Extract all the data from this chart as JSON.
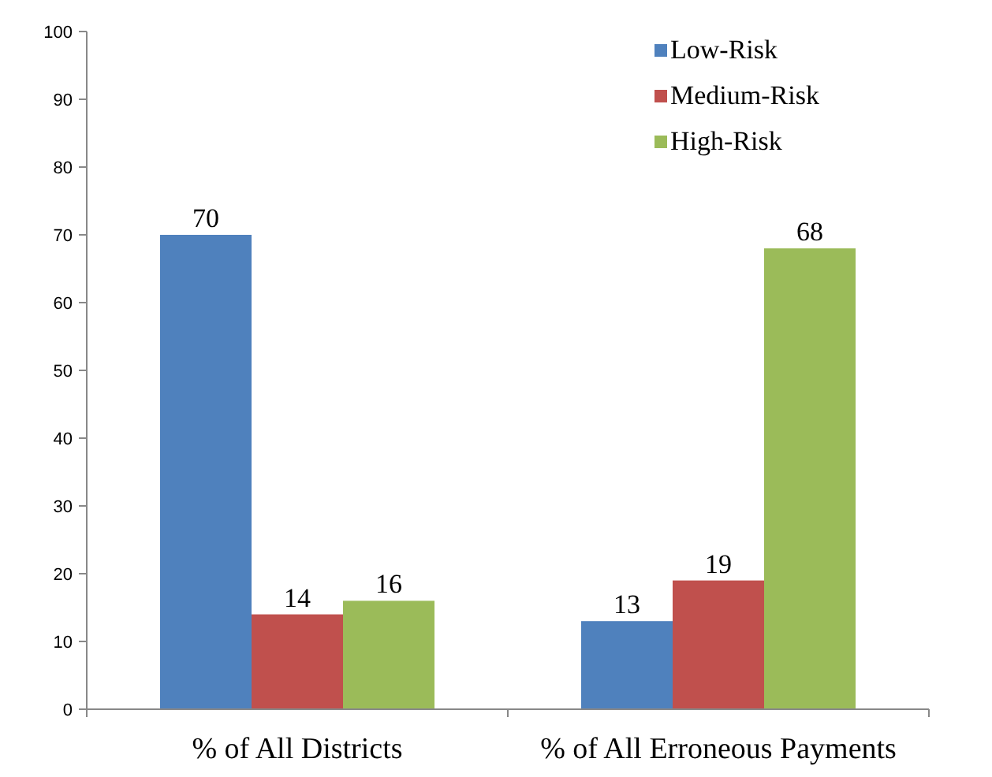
{
  "chart_data": {
    "type": "bar",
    "categories": [
      "% of All Districts",
      "% of All Erroneous Payments"
    ],
    "series": [
      {
        "name": "Low-Risk",
        "color": "#4f81bd",
        "values": [
          70,
          13
        ]
      },
      {
        "name": "Medium-Risk",
        "color": "#c0504d",
        "values": [
          14,
          19
        ]
      },
      {
        "name": "High-Risk",
        "color": "#9bbb59",
        "values": [
          16,
          68
        ]
      }
    ],
    "ylim": [
      0,
      100
    ],
    "yticks": [
      0,
      10,
      20,
      30,
      40,
      50,
      60,
      70,
      80,
      90,
      100
    ],
    "data_labels": true,
    "legend": "top right"
  }
}
